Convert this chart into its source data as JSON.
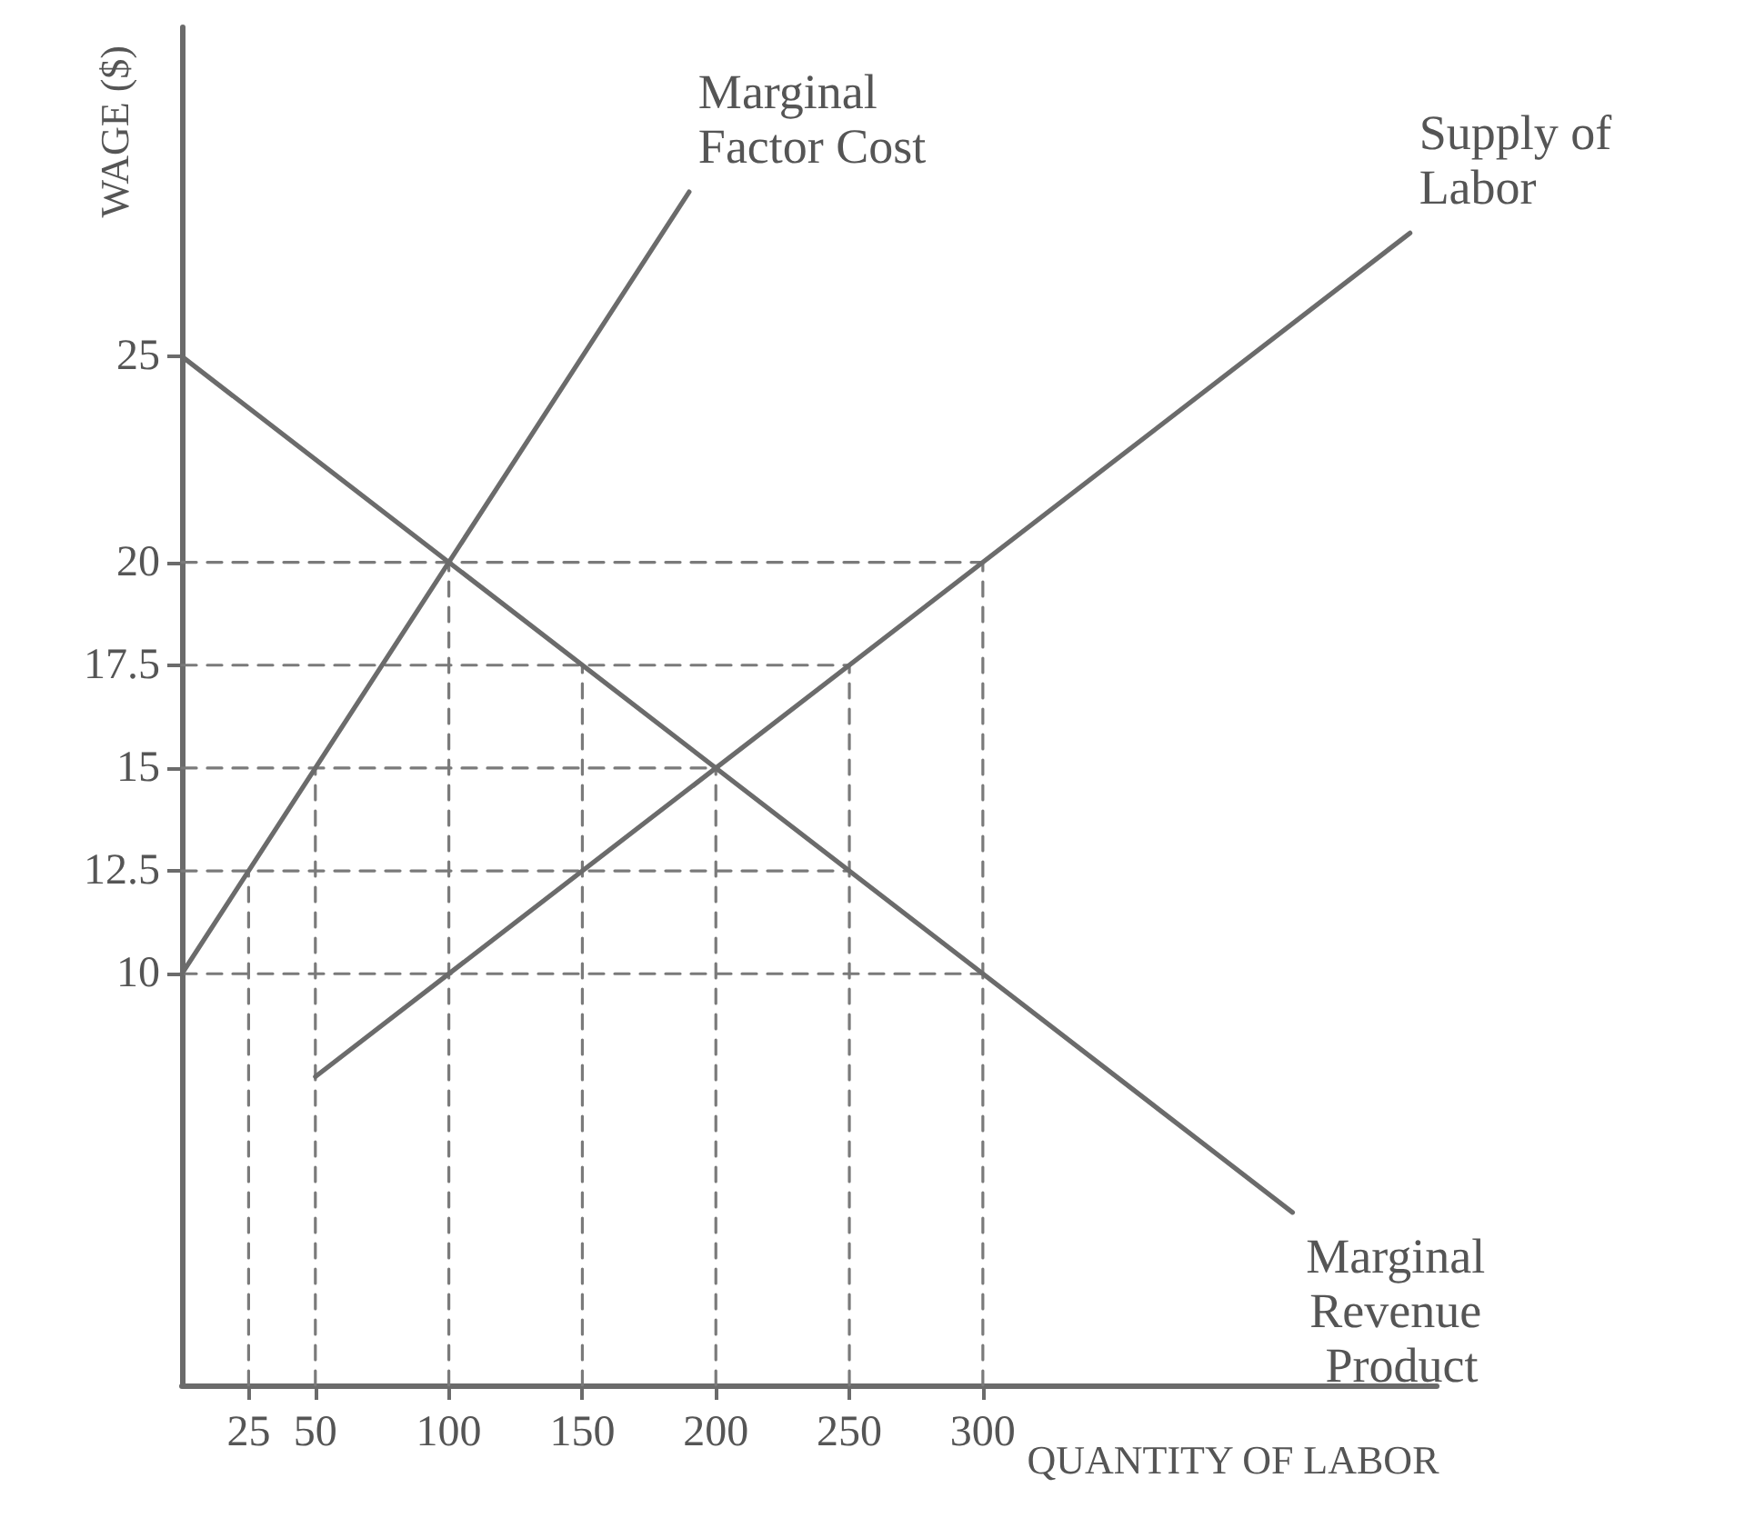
{
  "chart_data": {
    "type": "line",
    "xlabel": "QUANTITY OF LABOR",
    "ylabel": "WAGE ($)",
    "xlim": [
      0,
      470
    ],
    "ylim": [
      0,
      33
    ],
    "xticks": [
      25,
      50,
      100,
      150,
      200,
      250,
      300
    ],
    "yticks": [
      10,
      12.5,
      15,
      17.5,
      20,
      25
    ],
    "grid": false,
    "legend": false,
    "marker": "none",
    "series": [
      {
        "name": "Marginal Factor Cost",
        "color": "#6b6b6b",
        "line_style": "solid",
        "x": [
          0,
          190
        ],
        "values": [
          10,
          29
        ]
      },
      {
        "name": "Supply of Labor",
        "color": "#6b6b6b",
        "line_style": "solid",
        "x": [
          50,
          460
        ],
        "values": [
          7.5,
          28
        ]
      },
      {
        "name": "Marginal Revenue Product",
        "color": "#6b6b6b",
        "line_style": "solid",
        "x": [
          0,
          416
        ],
        "values": [
          25,
          4.2
        ]
      },
      {
        "color": "#7a7a7a",
        "line_style": "dashed",
        "x": [
          0,
          300
        ],
        "values": [
          20,
          20
        ]
      },
      {
        "color": "#7a7a7a",
        "line_style": "dashed",
        "x": [
          0,
          250
        ],
        "values": [
          17.5,
          17.5
        ]
      },
      {
        "color": "#7a7a7a",
        "line_style": "dashed",
        "x": [
          0,
          200
        ],
        "values": [
          15,
          15
        ]
      },
      {
        "color": "#7a7a7a",
        "line_style": "dashed",
        "x": [
          0,
          250
        ],
        "values": [
          12.5,
          12.5
        ]
      },
      {
        "color": "#7a7a7a",
        "line_style": "dashed",
        "x": [
          0,
          300
        ],
        "values": [
          10,
          10
        ]
      },
      {
        "color": "#7a7a7a",
        "line_style": "dashed",
        "x": [
          25,
          25
        ],
        "values": [
          0,
          12.5
        ]
      },
      {
        "color": "#7a7a7a",
        "line_style": "dashed",
        "x": [
          50,
          50
        ],
        "values": [
          0,
          15
        ]
      },
      {
        "color": "#7a7a7a",
        "line_style": "dashed",
        "x": [
          100,
          100
        ],
        "values": [
          0,
          20
        ]
      },
      {
        "color": "#7a7a7a",
        "line_style": "dashed",
        "x": [
          150,
          150
        ],
        "values": [
          0,
          17.5
        ]
      },
      {
        "color": "#7a7a7a",
        "line_style": "dashed",
        "x": [
          200,
          200
        ],
        "values": [
          0,
          15
        ]
      },
      {
        "color": "#7a7a7a",
        "line_style": "dashed",
        "x": [
          250,
          250
        ],
        "values": [
          0,
          17.5
        ]
      },
      {
        "color": "#7a7a7a",
        "line_style": "dashed",
        "x": [
          300,
          300
        ],
        "values": [
          0,
          20
        ]
      }
    ]
  }
}
